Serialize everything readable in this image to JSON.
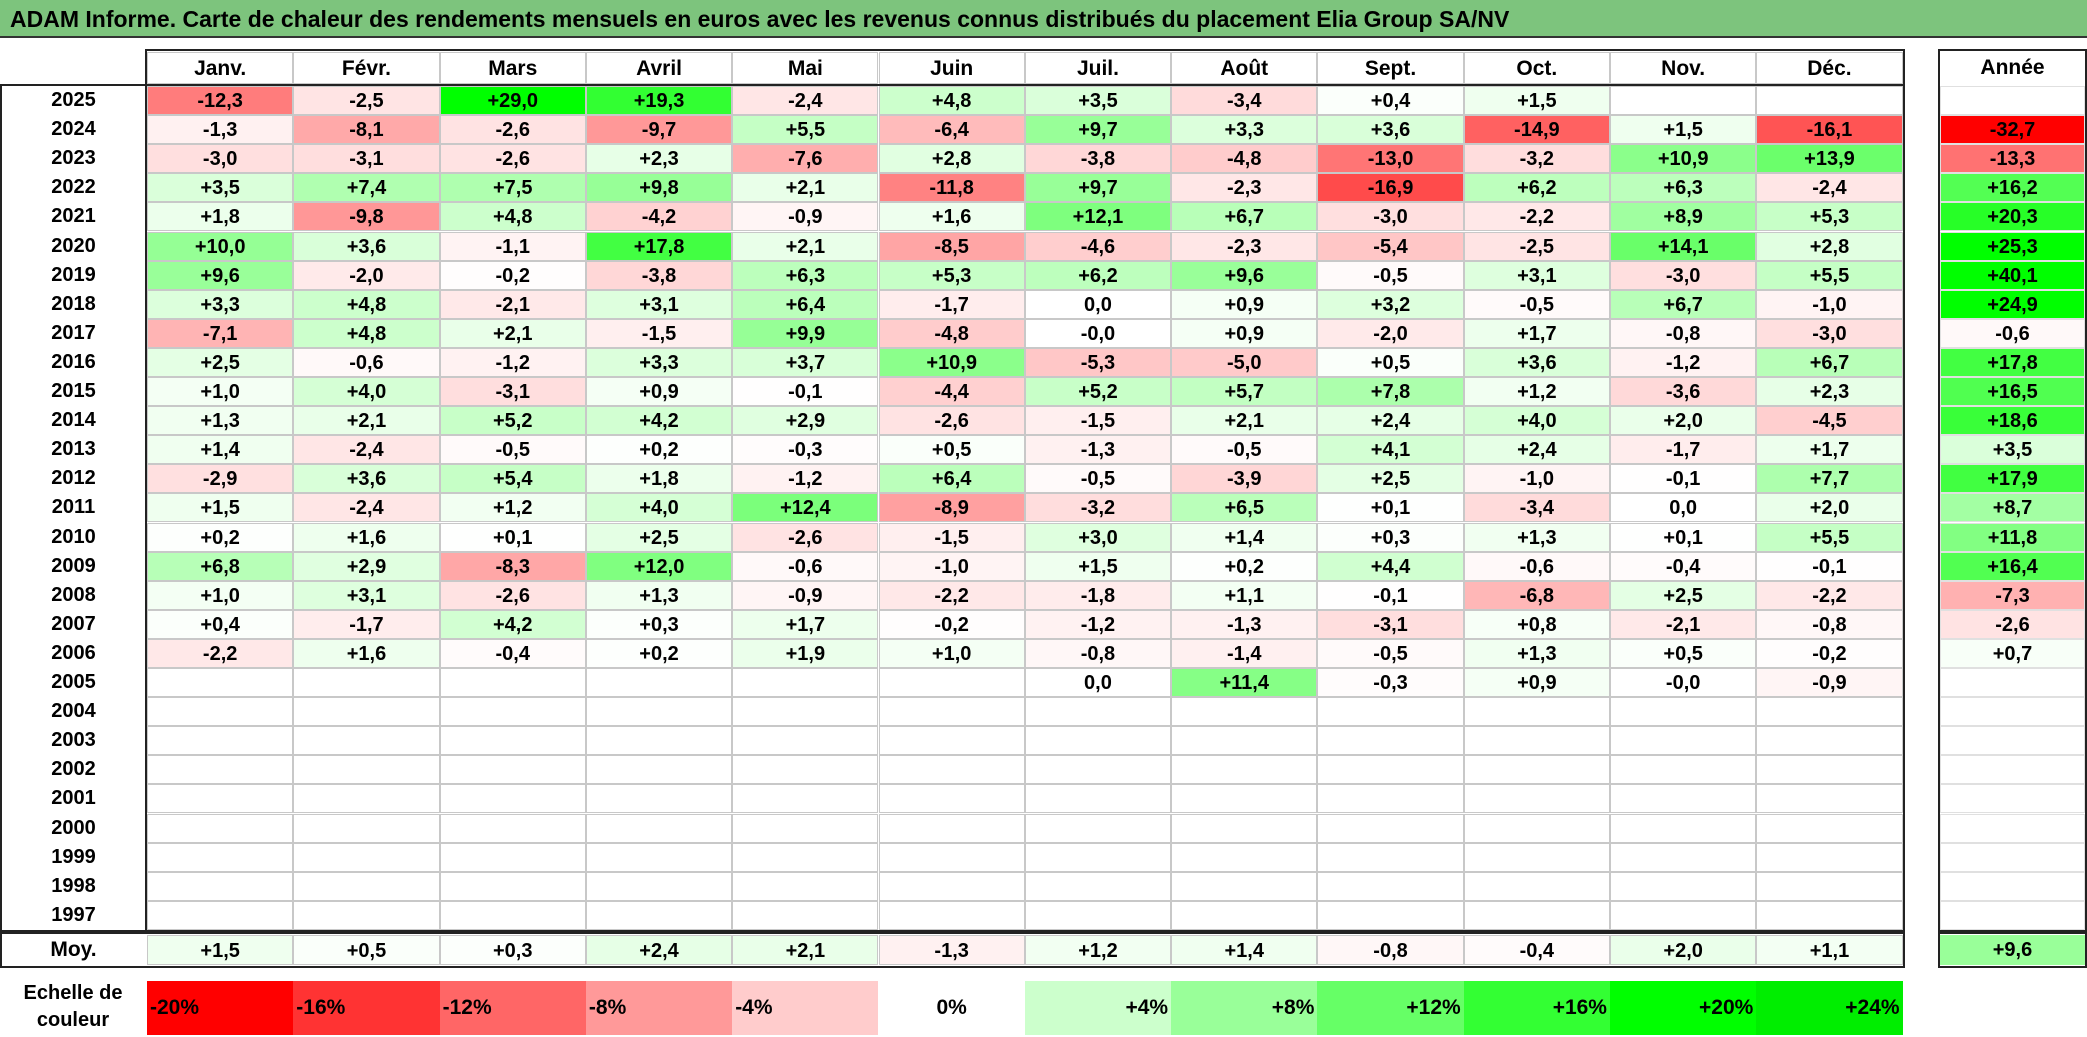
{
  "title": "ADAM Informe. Carte de chaleur des rendements mensuels en euros avec les revenus connus distribués du placement Elia Group SA/NV",
  "chart_data": {
    "type": "heatmap",
    "title": "ADAM Informe. Carte de chaleur des rendements mensuels en euros avec les revenus connus distribués du placement Elia Group SA/NV",
    "months": [
      "Janv.",
      "Févr.",
      "Mars",
      "Avril",
      "Mai",
      "Juin",
      "Juil.",
      "Août",
      "Sept.",
      "Oct.",
      "Nov.",
      "Déc."
    ],
    "year_header": "Année",
    "avg_label": "Moy.",
    "rows": [
      {
        "year": "2025",
        "values": [
          "-12,3",
          "-2,5",
          "+29,0",
          "+19,3",
          "-2,4",
          "+4,8",
          "+3,5",
          "-3,4",
          "+0,4",
          "+1,5",
          "",
          ""
        ],
        "annual": ""
      },
      {
        "year": "2024",
        "values": [
          "-1,3",
          "-8,1",
          "-2,6",
          "-9,7",
          "+5,5",
          "-6,4",
          "+9,7",
          "+3,3",
          "+3,6",
          "-14,9",
          "+1,5",
          "-16,1"
        ],
        "annual": "-32,7"
      },
      {
        "year": "2023",
        "values": [
          "-3,0",
          "-3,1",
          "-2,6",
          "+2,3",
          "-7,6",
          "+2,8",
          "-3,8",
          "-4,8",
          "-13,0",
          "-3,2",
          "+10,9",
          "+13,9"
        ],
        "annual": "-13,3"
      },
      {
        "year": "2022",
        "values": [
          "+3,5",
          "+7,4",
          "+7,5",
          "+9,8",
          "+2,1",
          "-11,8",
          "+9,7",
          "-2,3",
          "-16,9",
          "+6,2",
          "+6,3",
          "-2,4"
        ],
        "annual": "+16,2"
      },
      {
        "year": "2021",
        "values": [
          "+1,8",
          "-9,8",
          "+4,8",
          "-4,2",
          "-0,9",
          "+1,6",
          "+12,1",
          "+6,7",
          "-3,0",
          "-2,2",
          "+8,9",
          "+5,3"
        ],
        "annual": "+20,3"
      },
      {
        "year": "2020",
        "values": [
          "+10,0",
          "+3,6",
          "-1,1",
          "+17,8",
          "+2,1",
          "-8,5",
          "-4,6",
          "-2,3",
          "-5,4",
          "-2,5",
          "+14,1",
          "+2,8"
        ],
        "annual": "+25,3"
      },
      {
        "year": "2019",
        "values": [
          "+9,6",
          "-2,0",
          "-0,2",
          "-3,8",
          "+6,3",
          "+5,3",
          "+6,2",
          "+9,6",
          "-0,5",
          "+3,1",
          "-3,0",
          "+5,5"
        ],
        "annual": "+40,1"
      },
      {
        "year": "2018",
        "values": [
          "+3,3",
          "+4,8",
          "-2,1",
          "+3,1",
          "+6,4",
          "-1,7",
          "0,0",
          "+0,9",
          "+3,2",
          "-0,5",
          "+6,7",
          "-1,0"
        ],
        "annual": "+24,9"
      },
      {
        "year": "2017",
        "values": [
          "-7,1",
          "+4,8",
          "+2,1",
          "-1,5",
          "+9,9",
          "-4,8",
          "-0,0",
          "+0,9",
          "-2,0",
          "+1,7",
          "-0,8",
          "-3,0"
        ],
        "annual": "-0,6"
      },
      {
        "year": "2016",
        "values": [
          "+2,5",
          "-0,6",
          "-1,2",
          "+3,3",
          "+3,7",
          "+10,9",
          "-5,3",
          "-5,0",
          "+0,5",
          "+3,6",
          "-1,2",
          "+6,7"
        ],
        "annual": "+17,8"
      },
      {
        "year": "2015",
        "values": [
          "+1,0",
          "+4,0",
          "-3,1",
          "+0,9",
          "-0,1",
          "-4,4",
          "+5,2",
          "+5,7",
          "+7,8",
          "+1,2",
          "-3,6",
          "+2,3"
        ],
        "annual": "+16,5"
      },
      {
        "year": "2014",
        "values": [
          "+1,3",
          "+2,1",
          "+5,2",
          "+4,2",
          "+2,9",
          "-2,6",
          "-1,5",
          "+2,1",
          "+2,4",
          "+4,0",
          "+2,0",
          "-4,5"
        ],
        "annual": "+18,6"
      },
      {
        "year": "2013",
        "values": [
          "+1,4",
          "-2,4",
          "-0,5",
          "+0,2",
          "-0,3",
          "+0,5",
          "-1,3",
          "-0,5",
          "+4,1",
          "+2,4",
          "-1,7",
          "+1,7"
        ],
        "annual": "+3,5"
      },
      {
        "year": "2012",
        "values": [
          "-2,9",
          "+3,6",
          "+5,4",
          "+1,8",
          "-1,2",
          "+6,4",
          "-0,5",
          "-3,9",
          "+2,5",
          "-1,0",
          "-0,1",
          "+7,7"
        ],
        "annual": "+17,9"
      },
      {
        "year": "2011",
        "values": [
          "+1,5",
          "-2,4",
          "+1,2",
          "+4,0",
          "+12,4",
          "-8,9",
          "-3,2",
          "+6,5",
          "+0,1",
          "-3,4",
          "0,0",
          "+2,0"
        ],
        "annual": "+8,7"
      },
      {
        "year": "2010",
        "values": [
          "+0,2",
          "+1,6",
          "+0,1",
          "+2,5",
          "-2,6",
          "-1,5",
          "+3,0",
          "+1,4",
          "+0,3",
          "+1,3",
          "+0,1",
          "+5,5"
        ],
        "annual": "+11,8"
      },
      {
        "year": "2009",
        "values": [
          "+6,8",
          "+2,9",
          "-8,3",
          "+12,0",
          "-0,6",
          "-1,0",
          "+1,5",
          "+0,2",
          "+4,4",
          "-0,6",
          "-0,4",
          "-0,1"
        ],
        "annual": "+16,4"
      },
      {
        "year": "2008",
        "values": [
          "+1,0",
          "+3,1",
          "-2,6",
          "+1,3",
          "-0,9",
          "-2,2",
          "-1,8",
          "+1,1",
          "-0,1",
          "-6,8",
          "+2,5",
          "-2,2"
        ],
        "annual": "-7,3"
      },
      {
        "year": "2007",
        "values": [
          "+0,4",
          "-1,7",
          "+4,2",
          "+0,3",
          "+1,7",
          "-0,2",
          "-1,2",
          "-1,3",
          "-3,1",
          "+0,8",
          "-2,1",
          "-0,8"
        ],
        "annual": "-2,6"
      },
      {
        "year": "2006",
        "values": [
          "-2,2",
          "+1,6",
          "-0,4",
          "+0,2",
          "+1,9",
          "+1,0",
          "-0,8",
          "-1,4",
          "-0,5",
          "+1,3",
          "+0,5",
          "-0,2"
        ],
        "annual": "+0,7"
      },
      {
        "year": "2005",
        "values": [
          "",
          "",
          "",
          "",
          "",
          "",
          "0,0",
          "+11,4",
          "-0,3",
          "+0,9",
          "-0,0",
          "-0,9"
        ],
        "annual": ""
      },
      {
        "year": "2004",
        "values": [
          "",
          "",
          "",
          "",
          "",
          "",
          "",
          "",
          "",
          "",
          "",
          ""
        ],
        "annual": ""
      },
      {
        "year": "2003",
        "values": [
          "",
          "",
          "",
          "",
          "",
          "",
          "",
          "",
          "",
          "",
          "",
          ""
        ],
        "annual": ""
      },
      {
        "year": "2002",
        "values": [
          "",
          "",
          "",
          "",
          "",
          "",
          "",
          "",
          "",
          "",
          "",
          ""
        ],
        "annual": ""
      },
      {
        "year": "2001",
        "values": [
          "",
          "",
          "",
          "",
          "",
          "",
          "",
          "",
          "",
          "",
          "",
          ""
        ],
        "annual": ""
      },
      {
        "year": "2000",
        "values": [
          "",
          "",
          "",
          "",
          "",
          "",
          "",
          "",
          "",
          "",
          "",
          ""
        ],
        "annual": ""
      },
      {
        "year": "1999",
        "values": [
          "",
          "",
          "",
          "",
          "",
          "",
          "",
          "",
          "",
          "",
          "",
          ""
        ],
        "annual": ""
      },
      {
        "year": "1998",
        "values": [
          "",
          "",
          "",
          "",
          "",
          "",
          "",
          "",
          "",
          "",
          "",
          ""
        ],
        "annual": ""
      },
      {
        "year": "1997",
        "values": [
          "",
          "",
          "",
          "",
          "",
          "",
          "",
          "",
          "",
          "",
          "",
          ""
        ],
        "annual": ""
      }
    ],
    "averages": [
      "+1,5",
      "+0,5",
      "+0,3",
      "+2,4",
      "+2,1",
      "-1,3",
      "+1,2",
      "+1,4",
      "-0,8",
      "-0,4",
      "+2,0",
      "+1,1"
    ],
    "annual_average": "+9,6",
    "scale": {
      "label": "Echelle de couleur",
      "steps": [
        {
          "label": "-20%",
          "color": "#ff0000"
        },
        {
          "label": "-16%",
          "color": "#ff3333"
        },
        {
          "label": "-12%",
          "color": "#ff6666"
        },
        {
          "label": "-8%",
          "color": "#ff9999"
        },
        {
          "label": "-4%",
          "color": "#ffcccc"
        },
        {
          "label": "0%",
          "color": "#ffffff"
        },
        {
          "label": "+4%",
          "color": "#ccffcc"
        },
        {
          "label": "+8%",
          "color": "#99ff99"
        },
        {
          "label": "+12%",
          "color": "#66ff66"
        },
        {
          "label": "+16%",
          "color": "#33ff33"
        },
        {
          "label": "+20%",
          "color": "#00ff00"
        },
        {
          "label": "+24%",
          "color": "#00ee00"
        }
      ]
    },
    "color_scale": {
      "negative_max": "#ff0000",
      "neutral": "#ffffff",
      "positive_max": "#00ff00",
      "saturation_at": 24
    }
  }
}
